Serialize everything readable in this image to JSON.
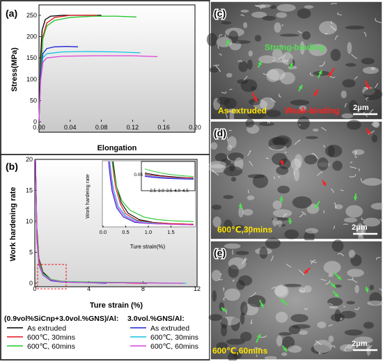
{
  "panels": {
    "a": "(a)",
    "b": "(b)",
    "c": "(c)",
    "d": "(d)",
    "e": "(e)"
  },
  "colors": {
    "black": "#000000",
    "red": "#e8101a",
    "green": "#21c42a",
    "blue": "#1a22d4",
    "cyan": "#13c2e6",
    "magenta": "#e13fd8",
    "annot_green": "#4fe04f",
    "annot_red": "#ff2020",
    "annot_yellow": "#ffe400"
  },
  "legend": {
    "group1_title": "(0.9vol%SiCnp+3.0vol.%GNS)/Al:",
    "group2_title": "3.0vol.%GNS/Al:",
    "items": [
      {
        "label": "As extruded",
        "color": "#000000"
      },
      {
        "label": "600℃, 30mins",
        "color": "#e8101a"
      },
      {
        "label": "600℃, 60mins",
        "color": "#21c42a"
      },
      {
        "label": "As extruded",
        "color": "#1a22d4"
      },
      {
        "label": "600℃, 30mins",
        "color": "#13c2e6"
      },
      {
        "label": "600℃, 60mins",
        "color": "#e13fd8"
      }
    ]
  },
  "sem": {
    "c": {
      "strong": "Strong-binding",
      "asext": "As-extruded",
      "weak": "Weak-binding",
      "scale": "2μm"
    },
    "d": {
      "cond": "600℃,30mins",
      "scale": "2μm"
    },
    "e": {
      "cond": "600℃,60mins",
      "scale": "2μm"
    }
  },
  "chart_data": [
    {
      "id": "a",
      "type": "line",
      "xlabel": "Elongation",
      "ylabel": "Stress(MPa)",
      "xlim": [
        0.0,
        0.2
      ],
      "ylim": [
        0,
        250
      ],
      "xticks": [
        "0.00",
        "0.04",
        "0.08",
        "0.12",
        "0.16",
        "0.20"
      ],
      "yticks": [
        "0",
        "50",
        "100",
        "150",
        "200",
        "250"
      ],
      "series": [
        {
          "color": "#000000",
          "x": [
            0,
            0.002,
            0.004,
            0.008,
            0.015,
            0.03,
            0.05,
            0.07,
            0.08
          ],
          "y": [
            0,
            150,
            215,
            240,
            248,
            252,
            253,
            252,
            250
          ]
        },
        {
          "color": "#e8101a",
          "x": [
            0,
            0.002,
            0.005,
            0.01,
            0.02,
            0.04,
            0.06,
            0.075
          ],
          "y": [
            0,
            120,
            200,
            232,
            245,
            251,
            252,
            251
          ]
        },
        {
          "color": "#21c42a",
          "x": [
            0,
            0.002,
            0.005,
            0.01,
            0.02,
            0.04,
            0.07,
            0.1,
            0.125
          ],
          "y": [
            0,
            110,
            195,
            225,
            238,
            245,
            248,
            248,
            246
          ]
        },
        {
          "color": "#1a22d4",
          "x": [
            0,
            0.002,
            0.005,
            0.01,
            0.02,
            0.035,
            0.05
          ],
          "y": [
            0,
            110,
            160,
            172,
            176,
            177,
            176
          ]
        },
        {
          "color": "#13c2e6",
          "x": [
            0,
            0.002,
            0.005,
            0.01,
            0.03,
            0.06,
            0.1,
            0.13
          ],
          "y": [
            0,
            100,
            150,
            160,
            164,
            165,
            164,
            162
          ]
        },
        {
          "color": "#e13fd8",
          "x": [
            0,
            0.002,
            0.005,
            0.01,
            0.03,
            0.07,
            0.12,
            0.152
          ],
          "y": [
            0,
            95,
            140,
            150,
            154,
            155,
            155,
            153
          ]
        }
      ]
    },
    {
      "id": "b",
      "type": "line",
      "xlabel": "Ture strain (%)",
      "ylabel": "Work hardening rate",
      "xlim": [
        0,
        12
      ],
      "ylim": [
        0,
        20
      ],
      "xticks": [
        "0",
        "4",
        "8",
        "12"
      ],
      "yticks": [
        "0",
        "5",
        "10",
        "15",
        "20"
      ],
      "series": [
        {
          "color": "#000000",
          "x": [
            0.05,
            0.15,
            0.3,
            0.6,
            1.2,
            2,
            4,
            6,
            8.3
          ],
          "y": [
            20,
            9,
            4,
            1.8,
            0.6,
            0.3,
            0.15,
            0.1,
            0
          ]
        },
        {
          "color": "#e8101a",
          "x": [
            0.05,
            0.15,
            0.3,
            0.6,
            1.2,
            2,
            4,
            6,
            7.8
          ],
          "y": [
            20,
            8.5,
            3.8,
            1.6,
            0.6,
            0.3,
            0.15,
            0.1,
            0
          ]
        },
        {
          "color": "#21c42a",
          "x": [
            0.05,
            0.15,
            0.3,
            0.6,
            1.2,
            2,
            4,
            8,
            10.8
          ],
          "y": [
            20,
            8,
            3.5,
            1.6,
            0.6,
            0.3,
            0.2,
            0.1,
            0
          ]
        },
        {
          "color": "#1a22d4",
          "x": [
            0.05,
            0.15,
            0.3,
            0.6,
            1.2,
            2,
            4,
            5.3
          ],
          "y": [
            20,
            7,
            3,
            1.3,
            0.4,
            0.2,
            0.1,
            0
          ]
        },
        {
          "color": "#13c2e6",
          "x": [
            0.05,
            0.15,
            0.3,
            0.6,
            1.2,
            2,
            4,
            8,
            11.2
          ],
          "y": [
            20,
            7.5,
            3.2,
            1.4,
            0.5,
            0.25,
            0.12,
            0.08,
            0
          ]
        },
        {
          "color": "#e13fd8",
          "x": [
            0.05,
            0.15,
            0.3,
            0.6,
            1.2,
            2,
            4,
            8,
            11
          ],
          "y": [
            20,
            7.2,
            3.1,
            1.3,
            0.5,
            0.22,
            0.1,
            0.06,
            0
          ]
        }
      ]
    },
    {
      "id": "b-inset",
      "type": "line",
      "xlabel": "Ture strain(%)",
      "ylabel": "Work hardeing rate",
      "xlim": [
        0,
        2
      ],
      "ylim": [
        0,
        1
      ],
      "xticks": [
        "0.0",
        "0.5",
        "1.0",
        "1.5"
      ],
      "series": [
        {
          "color": "#000000",
          "x": [
            0.22,
            0.26,
            0.3,
            0.4,
            0.55,
            0.8,
            1.1,
            1.5,
            2.0
          ],
          "y": [
            1,
            0.8,
            0.62,
            0.38,
            0.22,
            0.12,
            0.08,
            0.06,
            0.05
          ]
        },
        {
          "color": "#e8101a",
          "x": [
            0.2,
            0.24,
            0.28,
            0.38,
            0.5,
            0.75,
            1.05,
            1.5,
            2.0
          ],
          "y": [
            1,
            0.78,
            0.6,
            0.36,
            0.21,
            0.11,
            0.08,
            0.06,
            0.05
          ]
        },
        {
          "color": "#21c42a",
          "x": [
            0.2,
            0.25,
            0.3,
            0.42,
            0.6,
            0.9,
            1.2,
            1.6,
            2.0
          ],
          "y": [
            1,
            0.8,
            0.62,
            0.4,
            0.26,
            0.16,
            0.12,
            0.1,
            0.09
          ]
        },
        {
          "color": "#1a22d4",
          "x": [
            0.12,
            0.16,
            0.2,
            0.3,
            0.45,
            0.7,
            1.0,
            1.5,
            2.0
          ],
          "y": [
            1,
            0.75,
            0.55,
            0.3,
            0.16,
            0.08,
            0.06,
            0.05,
            0.04
          ]
        },
        {
          "color": "#13c2e6",
          "x": [
            0.15,
            0.19,
            0.24,
            0.34,
            0.5,
            0.75,
            1.05,
            1.5,
            2.0
          ],
          "y": [
            1,
            0.76,
            0.56,
            0.32,
            0.18,
            0.1,
            0.07,
            0.05,
            0.04
          ]
        },
        {
          "color": "#e13fd8",
          "x": [
            0.14,
            0.18,
            0.22,
            0.32,
            0.48,
            0.72,
            1.0,
            1.5,
            2.0
          ],
          "y": [
            1,
            0.74,
            0.55,
            0.31,
            0.17,
            0.09,
            0.06,
            0.05,
            0.04
          ]
        }
      ]
    },
    {
      "id": "b-inset-zoom",
      "type": "line",
      "xlim": [
        2.0,
        5.0
      ],
      "ylim": [
        0,
        0.08
      ],
      "xticks": [
        "2.5",
        "3.0",
        "3.5",
        "4.0",
        "4.5"
      ],
      "yticks": [
        "0.05"
      ],
      "series": [
        {
          "color": "#21c42a",
          "x": [
            2.0,
            2.5,
            3,
            3.5,
            4,
            4.5,
            5
          ],
          "y": [
            0.072,
            0.062,
            0.055,
            0.049,
            0.045,
            0.042,
            0.04
          ]
        },
        {
          "color": "#000000",
          "x": [
            2.0,
            2.5,
            3,
            3.5,
            4,
            4.5,
            5
          ],
          "y": [
            0.055,
            0.048,
            0.043,
            0.04,
            0.037,
            0.035,
            0.034
          ]
        },
        {
          "color": "#e8101a",
          "x": [
            2.0,
            2.5,
            3,
            3.5,
            4,
            4.5,
            5
          ],
          "y": [
            0.05,
            0.045,
            0.041,
            0.038,
            0.035,
            0.034,
            0.033
          ]
        },
        {
          "color": "#13c2e6",
          "x": [
            2.0,
            2.5,
            3,
            3.5,
            4,
            4.5,
            5
          ],
          "y": [
            0.046,
            0.041,
            0.037,
            0.035,
            0.033,
            0.031,
            0.03
          ]
        },
        {
          "color": "#e13fd8",
          "x": [
            2.0,
            2.5,
            3,
            3.5,
            4,
            4.5,
            5
          ],
          "y": [
            0.043,
            0.038,
            0.035,
            0.033,
            0.031,
            0.03,
            0.029
          ]
        },
        {
          "color": "#1a22d4",
          "x": [
            2.0,
            2.5,
            3,
            3.5,
            4,
            4.5,
            5
          ],
          "y": [
            0.04,
            0.036,
            0.033,
            0.031,
            0.03,
            0.029,
            0.028
          ]
        }
      ]
    }
  ]
}
